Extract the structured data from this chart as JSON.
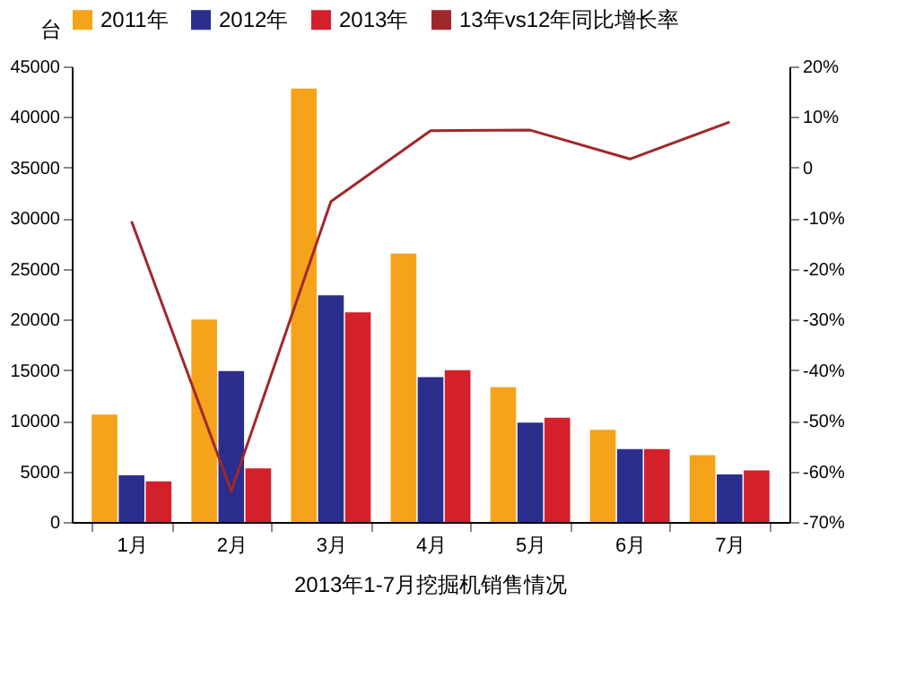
{
  "chart_data": {
    "type": "bar",
    "title": "2013年1-7月挖掘机销售情况",
    "ylabel": "台",
    "categories": [
      "1月",
      "2月",
      "3月",
      "4月",
      "5月",
      "6月",
      "7月"
    ],
    "series": [
      {
        "name": "2011年",
        "color": "#f5a31a",
        "values": [
          10600,
          20000,
          42800,
          26500,
          13300,
          9100,
          6600
        ]
      },
      {
        "name": "2012年",
        "color": "#2b2e8c",
        "values": [
          4600,
          14900,
          22400,
          14300,
          9800,
          7200,
          4700
        ]
      },
      {
        "name": "2013年",
        "color": "#d4202a",
        "values": [
          4000,
          5300,
          20700,
          15000,
          10300,
          7200,
          5100
        ]
      },
      {
        "name": "13年vs12年同比增长率",
        "color": "#a0282a",
        "type": "line",
        "axis": "y2",
        "values": [
          -10.6,
          -63.9,
          -6.7,
          7.3,
          7.4,
          1.7,
          9.0
        ]
      }
    ],
    "ylim": [
      0,
      45000
    ],
    "yticks": [
      0,
      5000,
      10000,
      15000,
      20000,
      25000,
      30000,
      35000,
      40000,
      45000
    ],
    "y2lim": [
      -70,
      20
    ],
    "y2ticks": [
      {
        "value": 20,
        "label": "20%"
      },
      {
        "value": 10,
        "label": "10%"
      },
      0,
      {
        "value": -10,
        "label": "-10%"
      },
      {
        "value": -20,
        "label": "-20%"
      },
      {
        "value": -30,
        "label": "-30%"
      },
      {
        "value": -40,
        "label": "-40%"
      },
      {
        "value": -50,
        "label": "-50%"
      },
      {
        "value": -60,
        "label": "-60%"
      },
      {
        "value": -70,
        "label": "-70%"
      }
    ],
    "grid": false,
    "legend": "top",
    "marker": "none"
  }
}
